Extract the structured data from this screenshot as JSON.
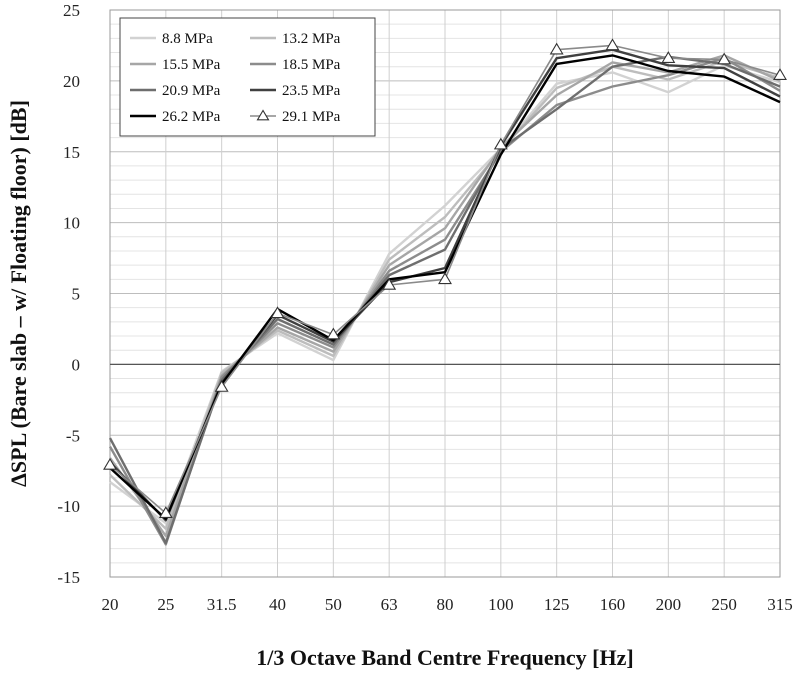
{
  "chart_data": {
    "type": "line",
    "title": "",
    "xlabel": "1/3 Octave Band Centre Frequency [Hz]",
    "ylabel": "ΔSPL (Bare slab – w/ Floating floor) [dB]",
    "categories": [
      "20",
      "25",
      "31.5",
      "40",
      "50",
      "63",
      "80",
      "100",
      "125",
      "160",
      "200",
      "250",
      "315"
    ],
    "ylim": [
      -15,
      25
    ],
    "yticks": [
      -15,
      -10,
      -5,
      0,
      5,
      10,
      15,
      20,
      25
    ],
    "grid": true,
    "legend_position": "top-left",
    "series": [
      {
        "name": "8.8 MPa",
        "color": "#d2d2d2",
        "marker": "none",
        "values": [
          -8.3,
          -11.2,
          -0.5,
          2.2,
          0.3,
          7.8,
          11.2,
          15.2,
          19.8,
          20.6,
          19.2,
          21.1,
          19.9
        ]
      },
      {
        "name": "13.2 MPa",
        "color": "#bdbdbd",
        "marker": "none",
        "values": [
          -7.8,
          -11.6,
          -0.6,
          2.4,
          0.6,
          7.4,
          10.4,
          15.1,
          19.5,
          21.0,
          20.1,
          21.4,
          20.2
        ]
      },
      {
        "name": "15.5 MPa",
        "color": "#a6a6a6",
        "marker": "none",
        "values": [
          -6.6,
          -12.1,
          -0.8,
          2.6,
          0.9,
          7.0,
          9.6,
          15.3,
          19.0,
          21.3,
          20.6,
          21.8,
          20.0
        ]
      },
      {
        "name": "18.5 MPa",
        "color": "#8c8c8c",
        "marker": "none",
        "values": [
          -5.8,
          -12.7,
          -0.9,
          2.9,
          1.2,
          6.6,
          8.8,
          15.0,
          18.3,
          19.6,
          20.4,
          21.6,
          19.3
        ]
      },
      {
        "name": "20.9 MPa",
        "color": "#6e6e6e",
        "marker": "none",
        "values": [
          -5.2,
          -12.6,
          -1.1,
          3.2,
          1.4,
          6.3,
          8.1,
          15.2,
          18.0,
          21.0,
          21.7,
          21.2,
          19.6
        ]
      },
      {
        "name": "23.5 MPa",
        "color": "#404040",
        "marker": "none",
        "values": [
          -6.9,
          -11.0,
          -1.3,
          3.5,
          1.6,
          5.8,
          6.8,
          15.4,
          21.6,
          22.2,
          21.1,
          20.9,
          18.9
        ]
      },
      {
        "name": "26.2 MPa",
        "color": "#000000",
        "marker": "none",
        "values": [
          -7.3,
          -10.9,
          -1.4,
          3.9,
          1.7,
          6.0,
          6.5,
          14.8,
          21.2,
          21.8,
          20.7,
          20.3,
          18.5
        ]
      },
      {
        "name": "29.1 MPa",
        "color": "#8a8a8a",
        "marker": "triangle",
        "values": [
          -7.1,
          -10.5,
          -1.6,
          3.6,
          2.1,
          5.6,
          6.0,
          15.5,
          22.2,
          22.5,
          21.6,
          21.5,
          20.4
        ]
      }
    ]
  }
}
